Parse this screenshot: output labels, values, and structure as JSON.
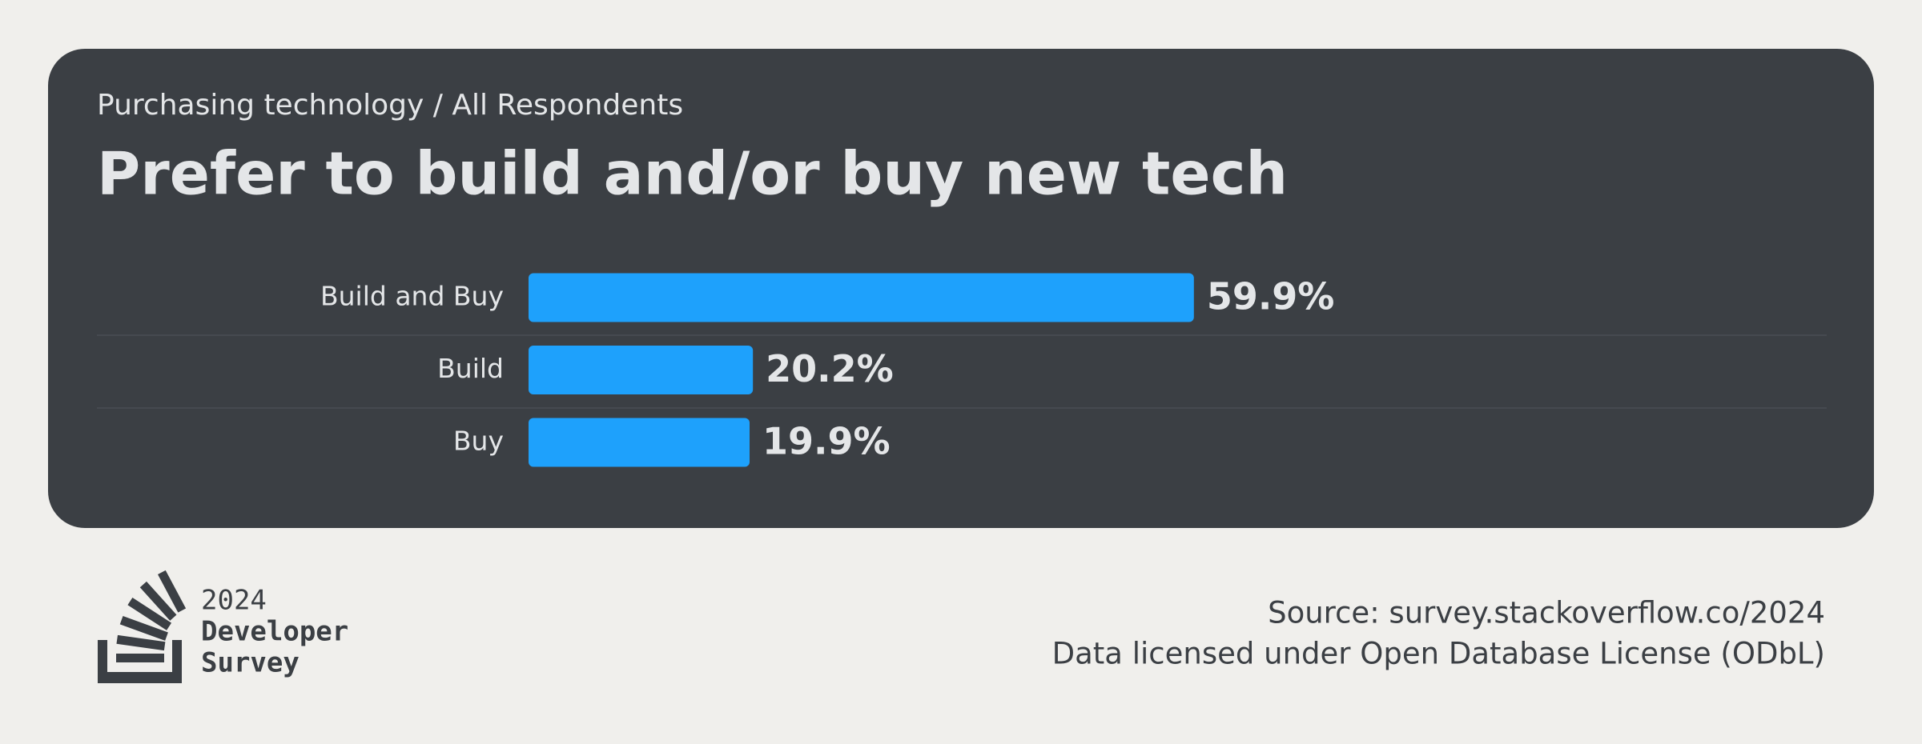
{
  "chart_data": {
    "type": "bar",
    "orientation": "horizontal",
    "subtitle": "Purchasing technology / All Respondents",
    "title": "Prefer to build and/or buy new tech",
    "categories": [
      "Build and Buy",
      "Build",
      "Buy"
    ],
    "values": [
      59.9,
      20.2,
      19.9
    ],
    "value_labels": [
      "59.9%",
      "20.2%",
      "19.9%"
    ],
    "color": "#1ea1fc"
  },
  "footer": {
    "logo": {
      "year": "2024",
      "line1": "Developer",
      "line2": "Survey"
    },
    "source": "Source: survey.stackoverflow.co/2024",
    "license": "Data licensed under Open Database License (ODbL)"
  }
}
